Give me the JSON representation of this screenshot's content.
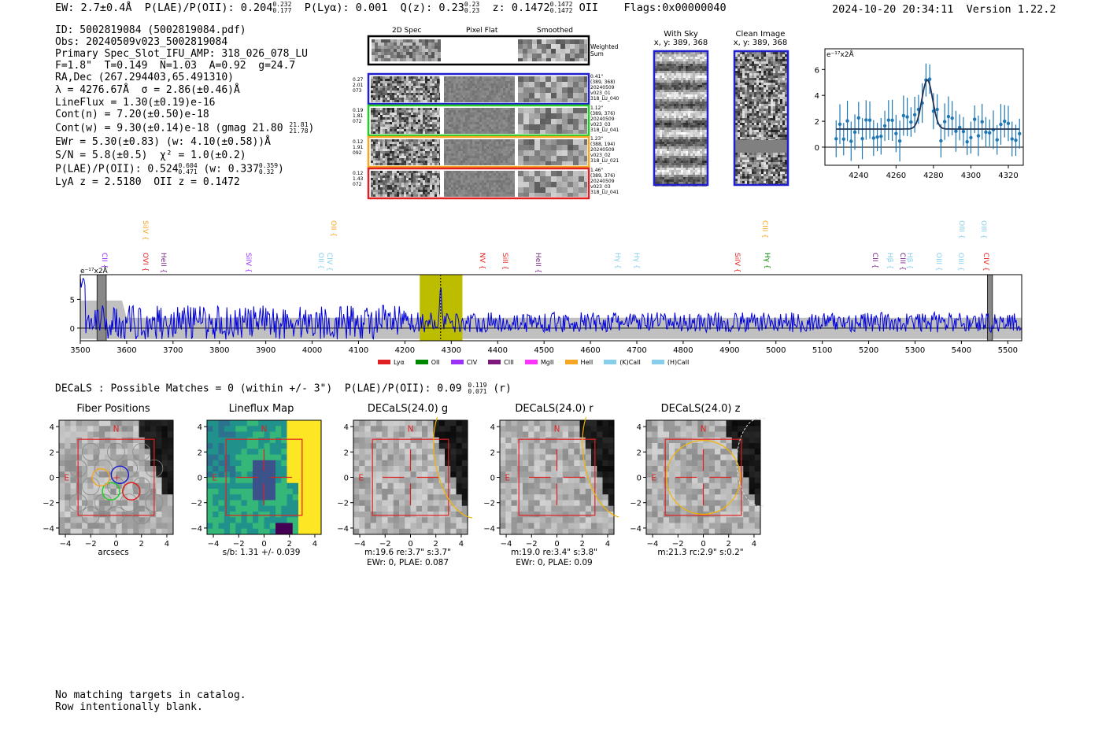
{
  "header": {
    "text": "EW: 2.7±0.4Å  P(LAE)/P(OII): 0.204",
    "plae_hi": "0.232",
    "plae_lo": "0.177",
    "plya": "P(Lyα): 0.001  Q(z): 0.23",
    "qz_hi": "0.23",
    "qz_lo": "0.23",
    "z": "z: 0.1472",
    "z_hi": "0.1472",
    "z_lo": "0.1472",
    "tail": "OII    Flags:0x00000040",
    "timestamp": "2024-10-20 20:34:11  Version 1.22.2"
  },
  "info": {
    "id": "ID: 5002819084 (5002819084.pdf)",
    "obs": "Obs: 20240509v023_5002819084",
    "slot": "Primary Spec_Slot_IFU_AMP: 318_026_078_LU",
    "fparams": "F=1.8\"  T=0.149  N=1.03  A=0.92  g=24.7",
    "radec": "RA,Dec (267.294403,65.491310)",
    "lambda": "λ = 4276.67Å  σ = 2.86(±0.46)Å",
    "lineflux": "LineFlux = 1.30(±0.19)e-16",
    "contn": "Cont(n) = 7.20(±0.50)e-18",
    "contw": "Cont(w) = 9.30(±0.14)e-18 (gmag 21.80",
    "gmag_hi": "21.81",
    "gmag_lo": "21.78",
    "ewr": "EWr = 5.30(±0.83) (w: 4.10(±0.58))Å",
    "sn": "S/N = 5.8(±0.5)  χ² = 1.0(±0.2)",
    "plae": "P(LAE)/P(OII): 0.524",
    "plae_hi": "0.604",
    "plae_lo": "0.471",
    "plae_w": "(w: 0.337",
    "plae_w_hi": "0.359",
    "plae_w_lo": "0.32",
    "lya": "LyA z = 2.5180  OII z = 0.1472"
  },
  "stamps": {
    "col_titles": [
      "2D Spec",
      "Pixel Flat",
      "Smoothed"
    ],
    "weighted": "Weighted\nSum",
    "rows": [
      {
        "left": "0.27\n2.01\n073",
        "right": "0.41\"\n(389, 368)\n20240509\nv023_01\n318_LU_040",
        "color": "#1f1fcc"
      },
      {
        "left": "0.19\n1.81\n072",
        "right": "1.12\"\n(389, 376)\n20240509\nv023_03\n318_LU_041",
        "color": "#22cc22"
      },
      {
        "left": "0.12\n1.91\n092",
        "right": "1.23\"\n(388, 194)\n20240509\nv023_02\n318_LU_021",
        "color": "#f5a623"
      },
      {
        "left": "0.12\n1.43\n072",
        "right": "1.46\"\n(389, 376)\n20240509\nv023_03\n318_LU_041",
        "color": "#e02020"
      }
    ]
  },
  "sky": {
    "with_sky_title": "With Sky",
    "with_sky_sub": "x, y: 389, 368",
    "clean_title": "Clean Image",
    "clean_sub": "x, y: 389, 368"
  },
  "zoom_chart": {
    "unit": "e⁻¹⁷x2Å",
    "x_ticks": [
      "4240",
      "4260",
      "4280",
      "4300",
      "4320"
    ],
    "y_ticks": [
      "0",
      "2",
      "4",
      "6"
    ]
  },
  "spectrum": {
    "unit": "e⁻¹⁷x2Å",
    "x_ticks": [
      "3500",
      "3600",
      "3700",
      "3800",
      "3900",
      "4000",
      "4100",
      "4200",
      "4300",
      "4400",
      "4500",
      "4600",
      "4700",
      "4800",
      "4900",
      "5000",
      "5100",
      "5200",
      "5300",
      "5400",
      "5500"
    ],
    "y_ticks": [
      "0",
      "5"
    ],
    "lines_low": [
      {
        "name": "CII",
        "color": "#9b30ff",
        "wl": 3551
      },
      {
        "name": "OVI",
        "color": "#e02020",
        "wl": 3640
      },
      {
        "name": "HeII",
        "color": "#7b2a8b",
        "wl": 3678
      },
      {
        "name": "SiIV",
        "color": "#9b30ff",
        "wl": 3862
      },
      {
        "name": "OII",
        "color": "#87ceeb",
        "wl": 4017
      },
      {
        "name": "CIV",
        "color": "#87ceeb",
        "wl": 4037
      },
      {
        "name": "NV",
        "color": "#e02020",
        "wl": 4366
      },
      {
        "name": "SiII",
        "color": "#e02020",
        "wl": 4415
      },
      {
        "name": "HeII",
        "color": "#7b2a8b",
        "wl": 4486
      },
      {
        "name": "Hγ",
        "color": "#87ceeb",
        "wl": 4657
      },
      {
        "name": "Hγ",
        "color": "#87ceeb",
        "wl": 4698
      },
      {
        "name": "SiIV",
        "color": "#e02020",
        "wl": 4916
      },
      {
        "name": "Hγ",
        "color": "#008800",
        "wl": 4980
      },
      {
        "name": "CII",
        "color": "#7b2a8b",
        "wl": 5212
      },
      {
        "name": "Hβ",
        "color": "#87ceeb",
        "wl": 5245
      },
      {
        "name": "CIII",
        "color": "#7b2a8b",
        "wl": 5272
      },
      {
        "name": "Hβ",
        "color": "#87ceeb",
        "wl": 5288
      },
      {
        "name": "OIII",
        "color": "#87ceeb",
        "wl": 5350
      },
      {
        "name": "OIII",
        "color": "#87ceeb",
        "wl": 5397
      },
      {
        "name": "CIV",
        "color": "#e02020",
        "wl": 5452
      }
    ],
    "lines_high": [
      {
        "name": "SiIV",
        "color": "#f5a623",
        "wl": 3640
      },
      {
        "name": "OII",
        "color": "#f5a623",
        "wl": 4045
      },
      {
        "name": "CIII",
        "color": "#f5a623",
        "wl": 4975
      },
      {
        "name": "OIII",
        "color": "#87ceeb",
        "wl": 5400
      },
      {
        "name": "OIII",
        "color": "#87ceeb",
        "wl": 5447
      }
    ],
    "legend": [
      {
        "label": "Lyα",
        "color": "#e02020"
      },
      {
        "label": "OII",
        "color": "#008800"
      },
      {
        "label": "CIV",
        "color": "#9b30ff"
      },
      {
        "label": "CIII",
        "color": "#7b1a7b"
      },
      {
        "label": "MgII",
        "color": "#ff33ff"
      },
      {
        "label": "HeII",
        "color": "#f5a623"
      },
      {
        "label": "(K)CaII",
        "color": "#87ceeb"
      },
      {
        "label": "(H)CaII",
        "color": "#87ceeb"
      }
    ]
  },
  "decals": {
    "summary": "DECaLS : Possible Matches = 0 (within +/- 3\")  P(LAE)/P(OII): 0.09",
    "summary_hi": "0.119",
    "summary_lo": "0.071",
    "summary_tail": "(r)",
    "panels": [
      {
        "title": "Fiber Positions",
        "lab1": "arcsecs",
        "lab2": "",
        "lab3": ""
      },
      {
        "title": "Lineflux Map",
        "lab1": "s/b: 1.31 +/- 0.039",
        "lab2": "",
        "lab3": ""
      },
      {
        "title": "DECaLS(24.0) g",
        "lab1": "m:19.6  re:3.7\"  s:3.7\"",
        "lab2": "EWr: 0, PLAE: 0.087",
        "lab3": ""
      },
      {
        "title": "DECaLS(24.0) r",
        "lab1": "m:19.0  re:3.4\"  s:3.8\"",
        "lab2": "EWr: 0, PLAE: 0.09",
        "lab3": ""
      },
      {
        "title": "DECaLS(24.0) z",
        "lab1": "m:21.3 rc:2.9\"  s:0.2\"",
        "lab2": "",
        "lab3": ""
      }
    ],
    "axis_ticks": [
      "−4",
      "−2",
      "0",
      "2",
      "4"
    ],
    "n_label": "N",
    "e_label": "E"
  },
  "footer": {
    "line1": "No matching targets in catalog.",
    "line2": "Row intentionally blank."
  }
}
